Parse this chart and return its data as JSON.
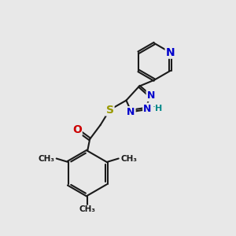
{
  "bg_color": "#e8e8e8",
  "bond_color": "#1a1a1a",
  "bond_width": 1.5,
  "nitrogen_color": "#0000cc",
  "oxygen_color": "#cc0000",
  "sulfur_color": "#999900",
  "nh_color": "#008888",
  "figsize": [
    3.0,
    3.0
  ],
  "dpi": 100,
  "xlim": [
    0,
    10
  ],
  "ylim": [
    0,
    10
  ]
}
